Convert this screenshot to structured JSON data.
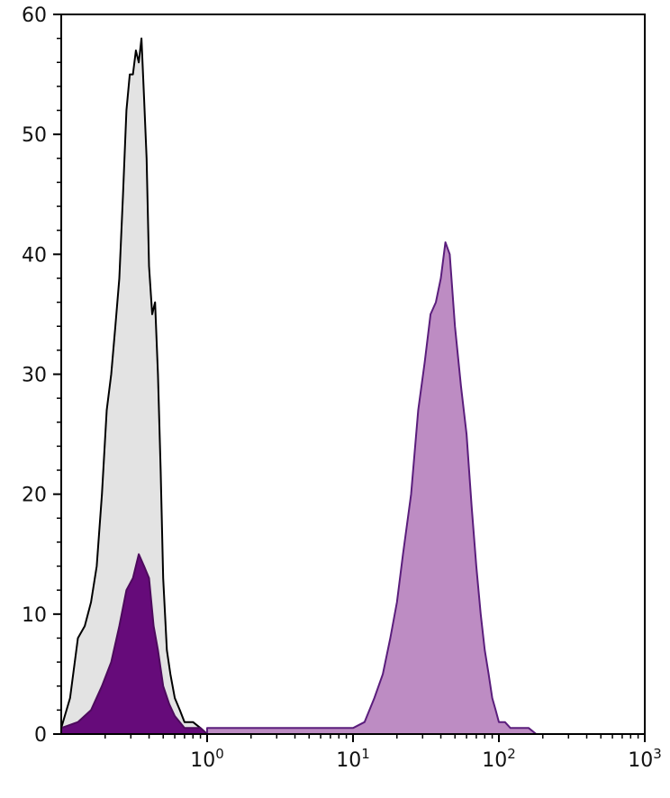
{
  "chart_data": {
    "type": "area",
    "title": "",
    "xlabel": "",
    "ylabel": "",
    "x_scale": "log",
    "xlim": [
      0.1,
      1000
    ],
    "ylim": [
      0,
      60
    ],
    "grid": false,
    "x_ticks": [
      {
        "value": 1,
        "base": "10",
        "exp": "0"
      },
      {
        "value": 10,
        "base": "10",
        "exp": "1"
      },
      {
        "value": 100,
        "base": "10",
        "exp": "2"
      },
      {
        "value": 1000,
        "base": "10",
        "exp": "3"
      }
    ],
    "y_ticks": [
      {
        "value": 0,
        "label": "0"
      },
      {
        "value": 10,
        "label": "10"
      },
      {
        "value": 20,
        "label": "20"
      },
      {
        "value": 30,
        "label": "30"
      },
      {
        "value": 40,
        "label": "40"
      },
      {
        "value": 50,
        "label": "50"
      },
      {
        "value": 60,
        "label": "60"
      }
    ],
    "series": [
      {
        "fill": "#e3e3e3",
        "stroke": "#000000",
        "x": [
          0.1,
          0.115,
          0.13,
          0.145,
          0.16,
          0.175,
          0.19,
          0.205,
          0.22,
          0.235,
          0.25,
          0.265,
          0.28,
          0.295,
          0.31,
          0.325,
          0.34,
          0.355,
          0.37,
          0.385,
          0.4,
          0.42,
          0.44,
          0.46,
          0.48,
          0.5,
          0.53,
          0.56,
          0.6,
          0.65,
          0.7,
          0.8,
          0.9,
          1.0
        ],
        "y": [
          0.5,
          3,
          8,
          9,
          11,
          14,
          20,
          27,
          30,
          34,
          38,
          45,
          52,
          55,
          55,
          57,
          56,
          58,
          53,
          48,
          39,
          35,
          36,
          30,
          22,
          13,
          7,
          5,
          3,
          2,
          1,
          1,
          0.5,
          0
        ]
      },
      {
        "fill": "#660b7a",
        "stroke": "#4d0a5d",
        "x": [
          0.1,
          0.13,
          0.16,
          0.19,
          0.22,
          0.25,
          0.28,
          0.31,
          0.34,
          0.37,
          0.4,
          0.43,
          0.46,
          0.5,
          0.55,
          0.6,
          0.7,
          0.8,
          0.9,
          1.0
        ],
        "y": [
          0.5,
          1,
          2,
          4,
          6,
          9,
          12,
          13,
          15,
          14,
          13,
          9,
          7,
          4,
          2.5,
          1.5,
          0.5,
          0.5,
          0.5,
          0
        ]
      },
      {
        "fill": "#bd8cc3",
        "stroke": "#5a1d7c",
        "x": [
          1,
          2,
          3,
          4,
          5,
          6,
          8,
          10,
          12,
          14,
          16,
          18,
          20,
          22,
          25,
          28,
          31,
          34,
          37,
          40,
          43,
          46,
          50,
          55,
          60,
          65,
          70,
          75,
          80,
          85,
          90,
          95,
          100,
          110,
          120,
          140,
          160,
          180
        ],
        "y": [
          0.5,
          0.5,
          0.5,
          0.5,
          0.5,
          0.5,
          0.5,
          0.5,
          1,
          3,
          5,
          8,
          11,
          15,
          20,
          27,
          31,
          35,
          36,
          38,
          41,
          40,
          34,
          29,
          25,
          19,
          14,
          10,
          7,
          5,
          3,
          2,
          1,
          1,
          0.5,
          0.5,
          0.5,
          0
        ]
      }
    ]
  }
}
